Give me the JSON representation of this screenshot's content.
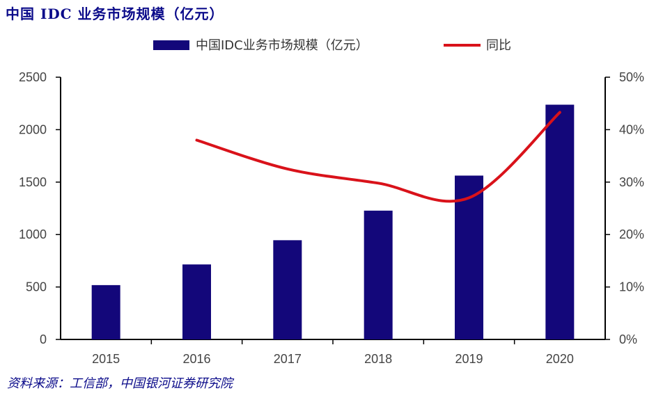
{
  "title": "中国 IDC 业务市场规模（亿元）",
  "source": "资料来源：工信部，中国银河证券研究院",
  "colors": {
    "bar": "#13077a",
    "line": "#d9121a",
    "axis": "#000000",
    "title": "#0b0b8a"
  },
  "chart_data": {
    "type": "bar",
    "title": "中国 IDC 业务市场规模（亿元）",
    "categories": [
      "2015",
      "2016",
      "2017",
      "2018",
      "2019",
      "2020"
    ],
    "series": [
      {
        "name": "中国IDC业务市场规模（亿元）",
        "type": "bar",
        "axis": "left",
        "values": [
          518,
          715,
          946,
          1228,
          1562,
          2238
        ]
      },
      {
        "name": "同比",
        "type": "line",
        "axis": "right",
        "values": [
          null,
          0.38,
          0.325,
          0.298,
          0.27,
          0.433
        ]
      }
    ],
    "y_left": {
      "ylim": [
        0,
        2500
      ],
      "ticks": [
        "0",
        "500",
        "1000",
        "1500",
        "2000",
        "2500"
      ]
    },
    "y_right": {
      "ylim": [
        0,
        0.5
      ],
      "ticks": [
        "0%",
        "10%",
        "20%",
        "30%",
        "40%",
        "50%"
      ]
    },
    "legend_position": "top-center",
    "grid": false
  }
}
